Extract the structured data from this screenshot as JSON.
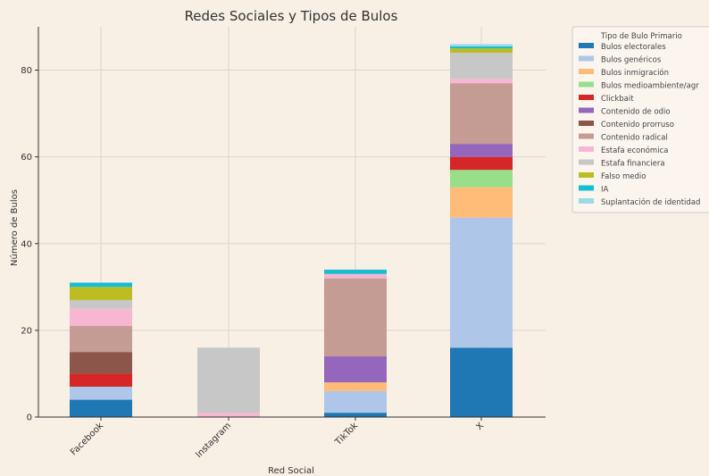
{
  "chart_data": {
    "type": "bar",
    "stacked": true,
    "title": "Redes Sociales y Tipos de Bulos",
    "xlabel": "Red Social",
    "ylabel": "Número de Bulos",
    "ylim": [
      0,
      90
    ],
    "yticks": [
      0,
      20,
      40,
      60,
      80
    ],
    "grid": true,
    "categories": [
      "Facebook",
      "Instagram",
      "TikTok",
      "X"
    ],
    "legend": {
      "title": "Tipo de Bulo Primario",
      "placement": "right"
    },
    "series": [
      {
        "name": "Bulos electorales",
        "color": "#1f77b4",
        "values": [
          4,
          0,
          1,
          16
        ]
      },
      {
        "name": "Bulos genéricos",
        "color": "#aec7e8",
        "values": [
          3,
          0,
          5,
          30
        ]
      },
      {
        "name": "Bulos inmigración",
        "color": "#ffbb78",
        "values": [
          0,
          0,
          2,
          7
        ]
      },
      {
        "name": "Bulos medioambiente/agr",
        "color": "#98df8a",
        "values": [
          0,
          0,
          0,
          4
        ]
      },
      {
        "name": "Clickbait",
        "color": "#d62728",
        "values": [
          3,
          0,
          0,
          3
        ]
      },
      {
        "name": "Contenido de odio",
        "color": "#9467bd",
        "values": [
          0,
          0,
          6,
          3
        ]
      },
      {
        "name": "Contenido prorruso",
        "color": "#8c564b",
        "values": [
          5,
          0,
          0,
          0
        ]
      },
      {
        "name": "Contenido radical",
        "color": "#c49c94",
        "values": [
          6,
          0,
          18,
          14
        ]
      },
      {
        "name": "Estafa económica",
        "color": "#f7b6d2",
        "values": [
          4,
          1,
          1,
          1
        ]
      },
      {
        "name": "Estafa financiera",
        "color": "#c7c7c7",
        "values": [
          2,
          15,
          0,
          6
        ]
      },
      {
        "name": "Falso medio",
        "color": "#bcbd22",
        "values": [
          3,
          0,
          0,
          1
        ]
      },
      {
        "name": "IA",
        "color": "#17becf",
        "values": [
          1,
          0,
          1,
          0.5
        ]
      },
      {
        "name": "Suplantación de identidad",
        "color": "#9edae5",
        "values": [
          0,
          0,
          0,
          0.5
        ]
      }
    ]
  }
}
